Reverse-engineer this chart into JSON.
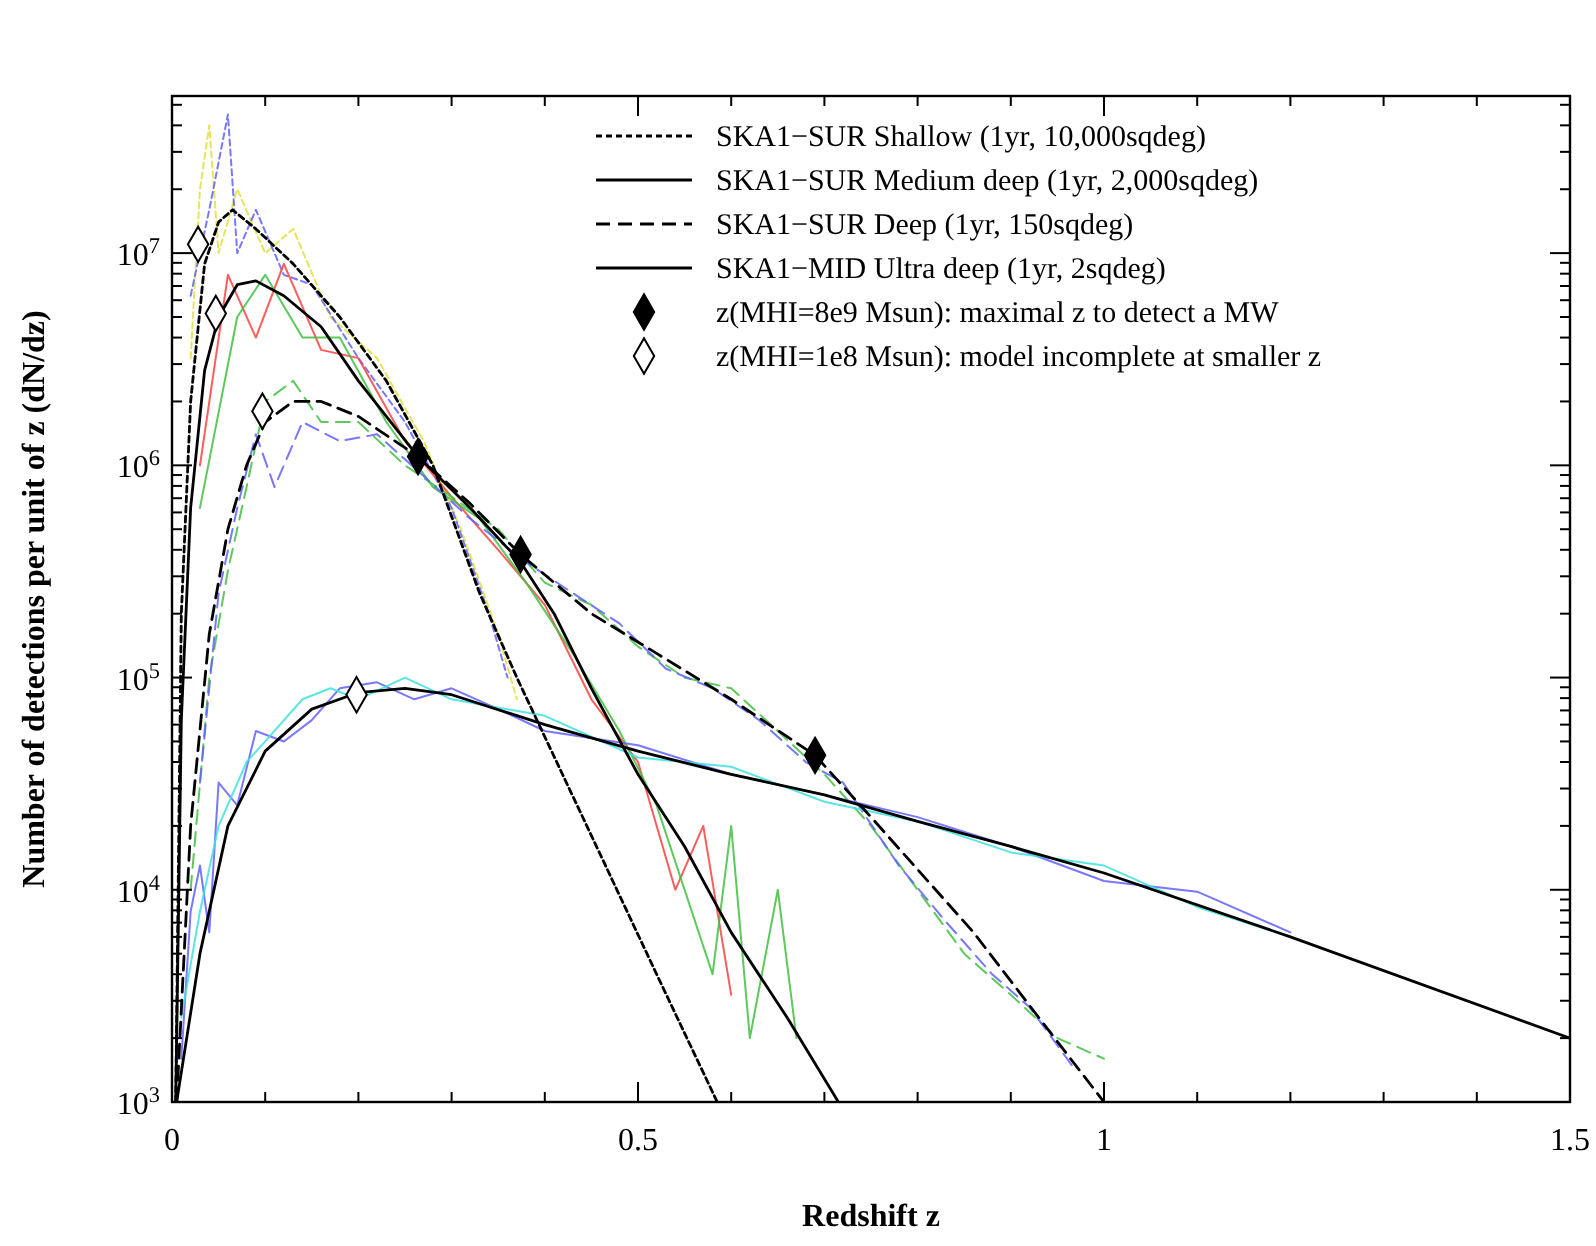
{
  "chart_data": {
    "type": "line",
    "xlabel": "Redshift z",
    "ylabel": "Number of detections per unit of z (dN/dz)",
    "log": "y",
    "grid": false,
    "legend": "top right",
    "xlim": [
      0,
      1.5
    ],
    "ylim": [
      1000,
      55000000.0
    ],
    "xticks": [
      0,
      {
        "value": 0.1,
        "label": null
      },
      {
        "value": 0.2,
        "label": null
      },
      {
        "value": 0.3,
        "label": null
      },
      {
        "value": 0.4,
        "label": null
      },
      0.5,
      {
        "value": 0.6,
        "label": null
      },
      {
        "value": 0.7,
        "label": null
      },
      {
        "value": 0.8,
        "label": null
      },
      {
        "value": 0.9,
        "label": null
      },
      1,
      {
        "value": 1.1,
        "label": null
      },
      {
        "value": 1.2,
        "label": null
      },
      {
        "value": 1.3,
        "label": null
      },
      {
        "value": 1.4,
        "label": null
      },
      1.5
    ],
    "yticks": [
      {
        "value": 1000,
        "label": "10$^{3}$"
      },
      {
        "value": 2000,
        "label": null
      },
      {
        "value": 3000,
        "label": null
      },
      {
        "value": 4000,
        "label": null
      },
      {
        "value": 5000,
        "label": null
      },
      {
        "value": 6000,
        "label": null
      },
      {
        "value": 7000,
        "label": null
      },
      {
        "value": 8000,
        "label": null
      },
      {
        "value": 9000,
        "label": null
      },
      {
        "value": 10000,
        "label": "10$^{4}$"
      },
      {
        "value": 20000,
        "label": null
      },
      {
        "value": 30000,
        "label": null
      },
      {
        "value": 40000,
        "label": null
      },
      {
        "value": 50000,
        "label": null
      },
      {
        "value": 60000,
        "label": null
      },
      {
        "value": 70000,
        "label": null
      },
      {
        "value": 80000,
        "label": null
      },
      {
        "value": 90000,
        "label": null
      },
      {
        "value": 100000,
        "label": "10$^{5}$"
      },
      {
        "value": 200000,
        "label": null
      },
      {
        "value": 300000,
        "label": null
      },
      {
        "value": 400000,
        "label": null
      },
      {
        "value": 500000,
        "label": null
      },
      {
        "value": 600000,
        "label": null
      },
      {
        "value": 700000,
        "label": null
      },
      {
        "value": 800000,
        "label": null
      },
      {
        "value": 900000,
        "label": null
      },
      {
        "value": 1000000,
        "label": "10$^{6}$"
      },
      {
        "value": 2000000,
        "label": null
      },
      {
        "value": 3000000,
        "label": null
      },
      {
        "value": 4000000,
        "label": null
      },
      {
        "value": 5000000,
        "label": null
      },
      {
        "value": 6000000,
        "label": null
      },
      {
        "value": 7000000,
        "label": null
      },
      {
        "value": 8000000,
        "label": null
      },
      {
        "value": 9000000,
        "label": null
      },
      {
        "value": 10000000,
        "label": "10$^{7}$"
      },
      {
        "value": 20000000,
        "label": null
      },
      {
        "value": 30000000,
        "label": null
      },
      {
        "value": 40000000,
        "label": null
      },
      {
        "value": 50000000,
        "label": null
      }
    ],
    "series": [
      {
        "color": "#e0e040",
        "line_style": "dotted",
        "x": [
          0.02,
          0.03,
          0.04,
          0.05,
          0.07,
          0.1,
          0.13,
          0.17,
          0.22,
          0.27,
          0.31,
          0.35,
          0.37
        ],
        "values": [
          3200000.0,
          20000000.0,
          40000000.0,
          10000000.0,
          20000000.0,
          10000000.0,
          13000000.0,
          5000000.0,
          3200000.0,
          1300000.0,
          500000.0,
          160000.0,
          79000.0
        ]
      },
      {
        "color": "#6060ff",
        "line_style": "dotted",
        "x": [
          0.02,
          0.04,
          0.06,
          0.07,
          0.09,
          0.12,
          0.15,
          0.2,
          0.25,
          0.3,
          0.34,
          0.36
        ],
        "values": [
          6300000.0,
          16000000.0,
          45000000.0,
          10000000.0,
          16000000.0,
          7900000.0,
          7100000.0,
          3200000.0,
          1600000.0,
          630000.0,
          200000.0,
          100000.0
        ]
      },
      {
        "color": "#ff4040",
        "line_style": "solid",
        "x": [
          0.03,
          0.06,
          0.09,
          0.12,
          0.16,
          0.2,
          0.25,
          0.3,
          0.35,
          0.4,
          0.45,
          0.5,
          0.54,
          0.57,
          0.6
        ],
        "values": [
          1000000.0,
          7900000.0,
          4000000.0,
          8900000.0,
          3500000.0,
          3200000.0,
          1300000.0,
          710000.0,
          400000.0,
          220000.0,
          79000.0,
          40000.0,
          10000.0,
          20000.0,
          3200.0
        ]
      },
      {
        "color": "#40c040",
        "line_style": "solid",
        "x": [
          0.03,
          0.07,
          0.1,
          0.14,
          0.18,
          0.23,
          0.28,
          0.33,
          0.38,
          0.43,
          0.48,
          0.52,
          0.58,
          0.6,
          0.62,
          0.65,
          0.67
        ],
        "values": [
          630000.0,
          5000000.0,
          7900000.0,
          4000000.0,
          4000000.0,
          1600000.0,
          790000.0,
          560000.0,
          280000.0,
          130000.0,
          56000.0,
          25000.0,
          4000.0,
          20000.0,
          2000.0,
          10000.0,
          2000.0
        ]
      },
      {
        "color": "#40c040",
        "line_style": "dashed",
        "x": [
          0.02,
          0.04,
          0.06,
          0.08,
          0.1,
          0.13,
          0.16,
          0.2,
          0.25,
          0.3,
          0.35,
          0.4,
          0.45,
          0.5,
          0.55,
          0.6,
          0.65,
          0.7,
          0.75,
          0.8,
          0.85,
          0.9,
          0.95,
          1.0
        ],
        "values": [
          10000.0,
          100000.0,
          320000.0,
          790000.0,
          2000000.0,
          2500000.0,
          1600000.0,
          1600000.0,
          1000000.0,
          710000.0,
          500000.0,
          280000.0,
          220000.0,
          140000.0,
          100000.0,
          89000.0,
          56000.0,
          35000.0,
          20000.0,
          10000.0,
          5000.0,
          3200.0,
          2000.0,
          1600.0
        ]
      },
      {
        "color": "#6060ff",
        "line_style": "dashed",
        "x": [
          0.03,
          0.05,
          0.07,
          0.09,
          0.11,
          0.14,
          0.18,
          0.22,
          0.27,
          0.32,
          0.38,
          0.43,
          0.48,
          0.53,
          0.58,
          0.63,
          0.68,
          0.72,
          0.78,
          0.83,
          0.88,
          0.92,
          0.97
        ],
        "values": [
          32000.0,
          250000.0,
          630000.0,
          1400000.0,
          790000.0,
          1600000.0,
          1300000.0,
          1400000.0,
          890000.0,
          560000.0,
          350000.0,
          250000.0,
          180000.0,
          110000.0,
          89000.0,
          63000.0,
          40000.0,
          32000.0,
          13000.0,
          7100.0,
          4000.0,
          2800.0,
          1400.0
        ]
      },
      {
        "color": "#6060ff",
        "line_style": "solid",
        "x": [
          0.01,
          0.02,
          0.03,
          0.04,
          0.05,
          0.07,
          0.09,
          0.12,
          0.15,
          0.18,
          0.22,
          0.26,
          0.3,
          0.35,
          0.4,
          0.5,
          0.6,
          0.7,
          0.8,
          0.9,
          1.0,
          1.1,
          1.2
        ],
        "values": [
          1600.0,
          7900.0,
          13000.0,
          6300.0,
          32000.0,
          25000.0,
          56000.0,
          50000.0,
          63000.0,
          89000.0,
          95000.0,
          79000.0,
          89000.0,
          71000.0,
          56000.0,
          48000.0,
          35000.0,
          28000.0,
          22000.0,
          16000.0,
          11000.0,
          9800.0,
          6300.0
        ]
      },
      {
        "color": "#40e0e0",
        "line_style": "solid",
        "x": [
          0.01,
          0.03,
          0.05,
          0.08,
          0.1,
          0.14,
          0.17,
          0.2,
          0.25,
          0.3,
          0.4,
          0.5,
          0.6,
          0.7,
          0.8,
          0.9,
          1.0,
          1.1,
          1.2
        ],
        "values": [
          2500.0,
          7900.0,
          20000.0,
          40000.0,
          50000.0,
          79000.0,
          89000.0,
          79000.0,
          100000.0,
          79000.0,
          66000.0,
          42000.0,
          38000.0,
          26000.0,
          21000.0,
          15000.0,
          13000.0,
          8300.0,
          6000.0
        ]
      },
      {
        "name": "SKA1−SUR Shallow (1yr, 10,000sqdeg)",
        "color": "#000000",
        "line_style": "dotted",
        "x": [
          0.004,
          0.01,
          0.02,
          0.035,
          0.05,
          0.065,
          0.09,
          0.13,
          0.18,
          0.23,
          0.28,
          0.33,
          0.37,
          0.45,
          0.52,
          0.585
        ],
        "values": [
          1000,
          200000.0,
          2000000.0,
          8900000.0,
          14000000.0,
          16000000.0,
          13000000.0,
          8900000.0,
          5000000.0,
          2500000.0,
          1000000.0,
          250000.0,
          100000.0,
          18000.0,
          4000.0,
          1000
        ]
      },
      {
        "name": "SKA1−SUR Medium deep (1yr, 2,000sqdeg)",
        "color": "#000000",
        "line_style": "solid",
        "x": [
          0.004,
          0.01,
          0.02,
          0.035,
          0.05,
          0.07,
          0.09,
          0.12,
          0.16,
          0.2,
          0.264,
          0.32,
          0.374,
          0.41,
          0.45,
          0.5,
          0.55,
          0.6,
          0.66,
          0.715
        ],
        "values": [
          1000,
          63000.0,
          630000.0,
          2800000.0,
          5000000.0,
          7100000.0,
          7400000.0,
          6300000.0,
          4500000.0,
          2500000.0,
          1100000.0,
          630000.0,
          350000.0,
          200000.0,
          89000.0,
          35000.0,
          16000.0,
          6300.0,
          2500.0,
          1000
        ]
      },
      {
        "name": "SKA1−SUR Deep (1yr, 150sqdeg)",
        "color": "#000000",
        "line_style": "dashed",
        "x": [
          0.005,
          0.02,
          0.04,
          0.06,
          0.08,
          0.1,
          0.13,
          0.16,
          0.2,
          0.264,
          0.32,
          0.374,
          0.45,
          0.52,
          0.6,
          0.69,
          0.75,
          0.86,
          0.93,
          1.0
        ],
        "values": [
          1000,
          20000.0,
          160000.0,
          500000.0,
          1000000.0,
          1600000.0,
          2000000.0,
          2000000.0,
          1700000.0,
          1100000.0,
          660000.0,
          380000.0,
          200000.0,
          130000.0,
          79000.0,
          43000.0,
          22000.0,
          6300.0,
          2500.0,
          1000
        ]
      },
      {
        "name": "SKA1−MID Ultra deep (1yr, 2sqdeg)",
        "color": "#000000",
        "line_style": "solid",
        "x": [
          0.005,
          0.03,
          0.06,
          0.1,
          0.15,
          0.2,
          0.25,
          0.3,
          0.4,
          0.5,
          0.6,
          0.7,
          0.8,
          0.9,
          1.0,
          1.2,
          1.5
        ],
        "values": [
          1000,
          5000.0,
          20000.0,
          45000.0,
          71000.0,
          85000.0,
          89000.0,
          83000.0,
          60000.0,
          45000.0,
          35000.0,
          28000.0,
          21000.0,
          16000.0,
          12000.0,
          6000.0,
          2000.0
        ]
      },
      {
        "name": "z(MHI=8e9 Msun): maximal z to detect a MW",
        "type": "scatter",
        "marker": "diamond",
        "color": "#000000",
        "x": [
          0.264,
          0.374,
          0.69
        ],
        "values": [
          1100000.0,
          380000.0,
          43000.0
        ]
      },
      {
        "name": "z(MHI=1e8 Msun): model incomplete at smaller z",
        "type": "scatter",
        "marker": "diamond",
        "color": "#ffffff",
        "x": [
          0.028,
          0.047,
          0.097,
          0.198
        ],
        "values": [
          11000000.0,
          5200000.0,
          1800000.0,
          83000.0
        ]
      }
    ]
  }
}
